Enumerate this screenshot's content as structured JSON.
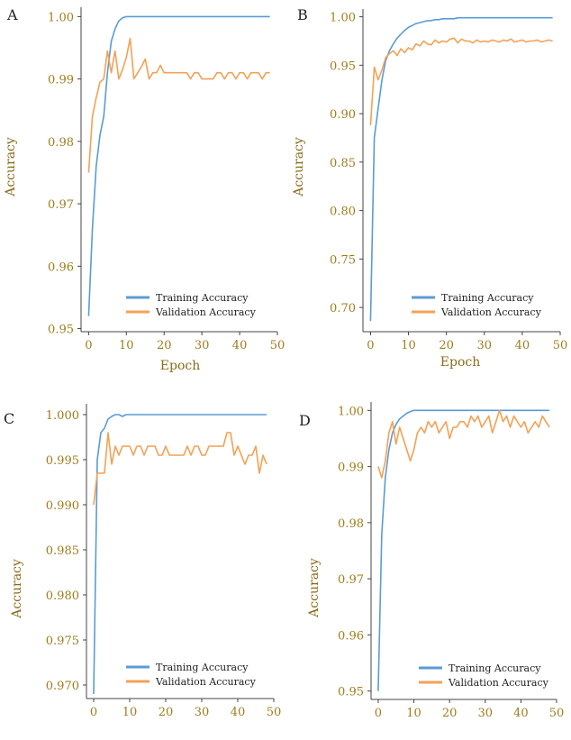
{
  "colors": {
    "training": "#5b9bd5",
    "validation": "#f4a155",
    "axis": "#444444",
    "tick": "#a07c1c",
    "label": "#8a6a18"
  },
  "chart_data": [
    {
      "panel": "A",
      "type": "line",
      "xlabel": "Epoch",
      "ylabel": "Accuracy",
      "xlim": [
        -2,
        50
      ],
      "ylim": [
        0.9495,
        1.0015
      ],
      "xticks": [
        0,
        10,
        20,
        30,
        40,
        50
      ],
      "yticks": [
        0.95,
        0.96,
        0.97,
        0.98,
        0.99,
        1.0
      ],
      "ytick_labels": [
        "0.95",
        "0.96",
        "0.97",
        "0.98",
        "0.99",
        "1.00"
      ],
      "legend": [
        "Training Accuracy",
        "Validation Accuracy"
      ],
      "series": [
        {
          "name": "Training Accuracy",
          "values": [
            0.952,
            0.966,
            0.976,
            0.981,
            0.984,
            0.991,
            0.996,
            0.998,
            0.9993,
            0.9998,
            1.0,
            1.0,
            1.0,
            1.0,
            1.0,
            1.0,
            1.0,
            1.0,
            1.0,
            1.0,
            1.0,
            1.0,
            1.0,
            1.0,
            1.0,
            1.0,
            1.0,
            1.0,
            1.0,
            1.0,
            1.0,
            1.0,
            1.0,
            1.0,
            1.0,
            1.0,
            1.0,
            1.0,
            1.0,
            1.0,
            1.0,
            1.0,
            1.0,
            1.0,
            1.0,
            1.0,
            1.0,
            1.0,
            1.0
          ]
        },
        {
          "name": "Validation Accuracy",
          "values": [
            0.975,
            0.984,
            0.987,
            0.9895,
            0.99,
            0.9945,
            0.991,
            0.9945,
            0.99,
            0.9915,
            0.9935,
            0.9965,
            0.99,
            0.991,
            0.992,
            0.9932,
            0.99,
            0.991,
            0.991,
            0.9922,
            0.991,
            0.991,
            0.991,
            0.991,
            0.991,
            0.991,
            0.991,
            0.99,
            0.991,
            0.991,
            0.99,
            0.99,
            0.99,
            0.99,
            0.991,
            0.991,
            0.99,
            0.991,
            0.991,
            0.99,
            0.991,
            0.991,
            0.99,
            0.991,
            0.991,
            0.991,
            0.99,
            0.991,
            0.991
          ]
        }
      ]
    },
    {
      "panel": "B",
      "type": "line",
      "xlabel": "Epoch",
      "ylabel": "Accuracy",
      "xlim": [
        -2,
        50
      ],
      "ylim": [
        0.675,
        1.008
      ],
      "xticks": [
        0,
        10,
        20,
        30,
        40,
        50
      ],
      "yticks": [
        0.7,
        0.75,
        0.8,
        0.85,
        0.9,
        0.95,
        1.0
      ],
      "ytick_labels": [
        "0.70",
        "0.75",
        "0.80",
        "0.85",
        "0.90",
        "0.95",
        "1.00"
      ],
      "legend": [
        "Training Accuracy",
        "Validation Accuracy"
      ],
      "series": [
        {
          "name": "Training Accuracy",
          "values": [
            0.686,
            0.875,
            0.905,
            0.935,
            0.955,
            0.965,
            0.972,
            0.978,
            0.982,
            0.986,
            0.989,
            0.991,
            0.993,
            0.994,
            0.995,
            0.996,
            0.996,
            0.997,
            0.997,
            0.998,
            0.998,
            0.998,
            0.998,
            0.999,
            0.999,
            0.999,
            0.999,
            0.999,
            0.999,
            0.999,
            0.999,
            0.999,
            0.999,
            0.999,
            0.999,
            0.999,
            0.999,
            0.999,
            0.999,
            0.999,
            0.999,
            0.999,
            0.999,
            0.999,
            0.999,
            0.999,
            0.999,
            0.999,
            0.999
          ]
        },
        {
          "name": "Validation Accuracy",
          "values": [
            0.888,
            0.948,
            0.935,
            0.945,
            0.958,
            0.962,
            0.965,
            0.96,
            0.967,
            0.963,
            0.968,
            0.966,
            0.972,
            0.97,
            0.975,
            0.972,
            0.971,
            0.976,
            0.973,
            0.975,
            0.974,
            0.977,
            0.978,
            0.973,
            0.977,
            0.975,
            0.975,
            0.973,
            0.976,
            0.974,
            0.975,
            0.974,
            0.976,
            0.975,
            0.974,
            0.976,
            0.975,
            0.977,
            0.974,
            0.975,
            0.976,
            0.974,
            0.975,
            0.975,
            0.976,
            0.974,
            0.975,
            0.976,
            0.975
          ]
        }
      ]
    },
    {
      "panel": "C",
      "type": "line",
      "xlabel": "",
      "ylabel": "Accuracy",
      "xlim": [
        -2,
        50
      ],
      "ylim": [
        0.9685,
        1.0012
      ],
      "xticks": [
        0,
        10,
        20,
        30,
        40,
        50
      ],
      "yticks": [
        0.97,
        0.975,
        0.98,
        0.985,
        0.99,
        0.995,
        1.0
      ],
      "ytick_labels": [
        "0.970",
        "0.975",
        "0.980",
        "0.985",
        "0.990",
        "0.995",
        "1.000"
      ],
      "legend": [
        "Training Accuracy",
        "Validation Accuracy"
      ],
      "series": [
        {
          "name": "Training Accuracy",
          "values": [
            0.969,
            0.995,
            0.998,
            0.9985,
            0.9995,
            0.9998,
            1.0,
            1.0,
            0.9998,
            1.0,
            1.0,
            1.0,
            1.0,
            1.0,
            1.0,
            1.0,
            1.0,
            1.0,
            1.0,
            1.0,
            1.0,
            1.0,
            1.0,
            1.0,
            1.0,
            1.0,
            1.0,
            1.0,
            1.0,
            1.0,
            1.0,
            1.0,
            1.0,
            1.0,
            1.0,
            1.0,
            1.0,
            1.0,
            1.0,
            1.0,
            1.0,
            1.0,
            1.0,
            1.0,
            1.0,
            1.0,
            1.0,
            1.0,
            1.0
          ]
        },
        {
          "name": "Validation Accuracy",
          "values": [
            0.99,
            0.9935,
            0.9935,
            0.9935,
            0.998,
            0.9945,
            0.9965,
            0.9955,
            0.9965,
            0.9965,
            0.9965,
            0.9955,
            0.9965,
            0.9965,
            0.9955,
            0.9965,
            0.9965,
            0.9965,
            0.9955,
            0.9955,
            0.9965,
            0.9955,
            0.9955,
            0.9955,
            0.9955,
            0.9955,
            0.9965,
            0.9955,
            0.9965,
            0.9965,
            0.9955,
            0.9955,
            0.9965,
            0.9965,
            0.9965,
            0.9965,
            0.9965,
            0.998,
            0.998,
            0.9955,
            0.9965,
            0.9955,
            0.9945,
            0.9955,
            0.9955,
            0.9965,
            0.9935,
            0.9955,
            0.9945
          ]
        }
      ]
    },
    {
      "panel": "D",
      "type": "line",
      "xlabel": "",
      "ylabel": "Accuracy",
      "xlim": [
        -2,
        50
      ],
      "ylim": [
        0.9485,
        1.0015
      ],
      "xticks": [
        0,
        10,
        20,
        30,
        40,
        50
      ],
      "yticks": [
        0.95,
        0.96,
        0.97,
        0.98,
        0.99,
        1.0
      ],
      "ytick_labels": [
        "0.95",
        "0.96",
        "0.97",
        "0.98",
        "0.99",
        "1.00"
      ],
      "legend": [
        "Training Accuracy",
        "Validation Accuracy"
      ],
      "series": [
        {
          "name": "Training Accuracy",
          "values": [
            0.95,
            0.978,
            0.988,
            0.993,
            0.996,
            0.9975,
            0.9985,
            0.999,
            0.9995,
            0.9998,
            1.0,
            1.0,
            1.0,
            1.0,
            1.0,
            1.0,
            1.0,
            1.0,
            1.0,
            1.0,
            1.0,
            1.0,
            1.0,
            1.0,
            1.0,
            1.0,
            1.0,
            1.0,
            1.0,
            1.0,
            1.0,
            1.0,
            1.0,
            1.0,
            1.0,
            1.0,
            1.0,
            1.0,
            1.0,
            1.0,
            1.0,
            1.0,
            1.0,
            1.0,
            1.0,
            1.0,
            1.0,
            1.0,
            1.0
          ]
        },
        {
          "name": "Validation Accuracy",
          "values": [
            0.99,
            0.988,
            0.991,
            0.996,
            0.998,
            0.994,
            0.997,
            0.995,
            0.993,
            0.991,
            0.993,
            0.996,
            0.997,
            0.996,
            0.998,
            0.997,
            0.998,
            0.996,
            0.997,
            0.998,
            0.995,
            0.997,
            0.997,
            0.998,
            0.998,
            0.997,
            0.999,
            0.998,
            0.999,
            0.997,
            0.998,
            0.999,
            0.996,
            0.998,
            1.0,
            0.998,
            0.999,
            0.997,
            0.999,
            0.998,
            0.997,
            0.998,
            0.996,
            0.997,
            0.998,
            0.997,
            0.999,
            0.998,
            0.997
          ]
        }
      ]
    }
  ]
}
